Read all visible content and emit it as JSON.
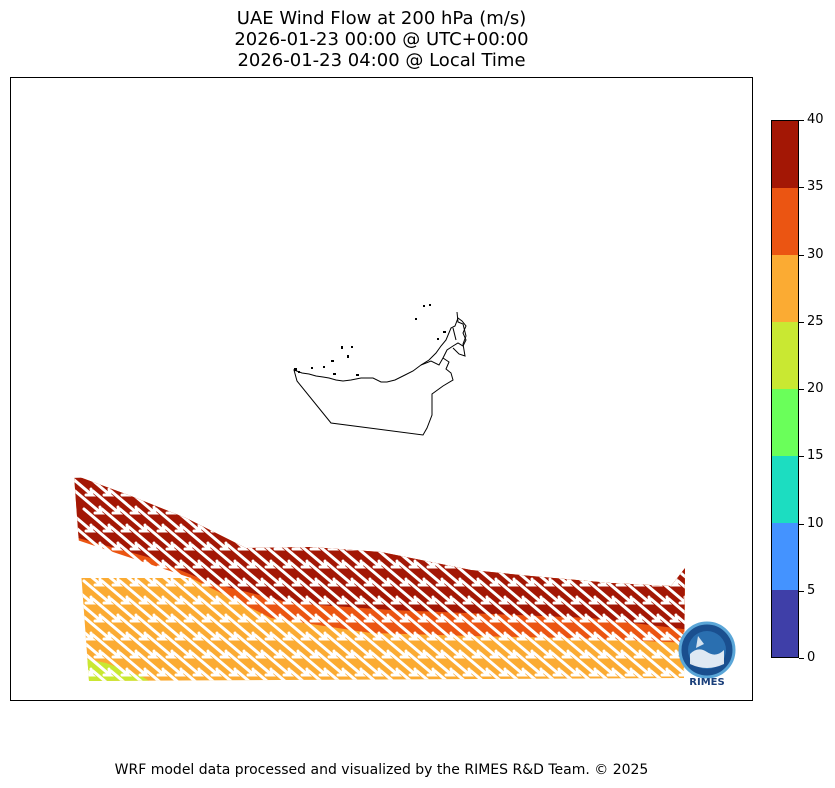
{
  "title": {
    "line1": "UAE Wind Flow at 200 hPa (m/s)",
    "line2": "2026-01-23 00:00 @ UTC+00:00",
    "line3": "2026-01-23 04:00 @ Local Time"
  },
  "colorbar": {
    "ticks": [
      "0",
      "5",
      "10",
      "15",
      "20",
      "25",
      "30",
      "35",
      "40"
    ],
    "colors": [
      "#3f3fa8",
      "#4493ff",
      "#1cddc1",
      "#6aff5a",
      "#c9e832",
      "#fbab33",
      "#eb5512",
      "#a31705"
    ]
  },
  "map": {
    "region": "UAE",
    "wind_colors": {
      "band_top": "#a31705",
      "band_mid": "#eb5512",
      "band_low": "#fbab33",
      "band_edge": "#c9e832"
    },
    "arrow_color": "#ffffff",
    "outline_color": "#000000"
  },
  "logo": {
    "text": "RIMES",
    "icon": "rimes-seal-icon"
  },
  "footer": {
    "credit": "WRF model data processed and visualized by the RIMES R&D Team. © 2025"
  }
}
